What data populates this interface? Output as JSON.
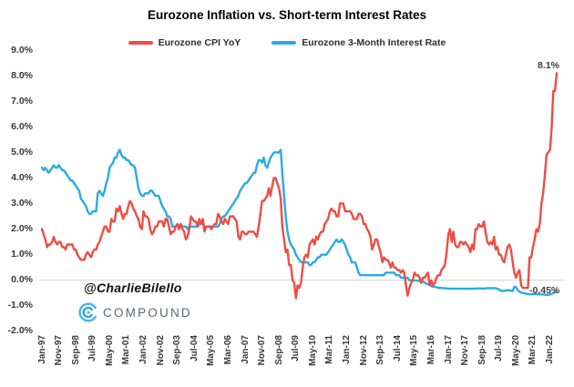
{
  "page": {
    "background": "#ffffff"
  },
  "chart_data": {
    "type": "line",
    "title": "Eurozone Inflation vs. Short-term Interest Rates",
    "x_range": {
      "start": "Jan-1997",
      "end": "May-2022",
      "frequency": "monthly",
      "points": 305
    },
    "ylim": [
      -2.0,
      9.0
    ],
    "grid": "horizontal line at 0.0% only",
    "legend_position": "top-center",
    "y_ticks": [
      9,
      8,
      7,
      6,
      5,
      4,
      3,
      2,
      1,
      0,
      -1,
      -2
    ],
    "y_tick_labels": [
      "9.0%",
      "8.0%",
      "7.0%",
      "6.0%",
      "5.0%",
      "4.0%",
      "3.0%",
      "2.0%",
      "1.0%",
      "0.0%",
      "-1.0%",
      "-2.0%"
    ],
    "x_tick_every": 10,
    "x_tick_labels": [
      "Jan-97",
      "Nov-97",
      "Sep-98",
      "Jul-99",
      "May-00",
      "Mar-01",
      "Jan-02",
      "Nov-02",
      "Sep-03",
      "Jul-04",
      "May-05",
      "Mar-06",
      "Jan-07",
      "Nov-07",
      "Sep-08",
      "Jul-09",
      "May-10",
      "Mar-11",
      "Jan-12",
      "Nov-12",
      "Sep-13",
      "Jul-14",
      "May-15",
      "Mar-16",
      "Jan-17",
      "Nov-17",
      "Sep-18",
      "Jul-19",
      "May-20",
      "Mar-21",
      "Jan-22"
    ],
    "gridline_color": "#d2d2d2",
    "series": [
      {
        "name": "Eurozone CPI YoY",
        "color": "#ef4c45",
        "values": [
          2.0,
          1.8,
          1.6,
          1.3,
          1.4,
          1.4,
          1.5,
          1.7,
          1.5,
          1.4,
          1.5,
          1.5,
          1.3,
          1.3,
          1.2,
          1.4,
          1.4,
          1.4,
          1.4,
          1.2,
          1.2,
          1.0,
          0.9,
          0.8,
          0.8,
          0.8,
          1.0,
          1.1,
          1.0,
          0.9,
          1.1,
          1.2,
          1.2,
          1.4,
          1.5,
          1.7,
          1.9,
          2.1,
          2.1,
          1.9,
          1.9,
          2.4,
          2.3,
          2.3,
          2.8,
          2.7,
          2.9,
          2.6,
          2.4,
          2.6,
          2.6,
          2.9,
          3.1,
          3.0,
          2.8,
          2.7,
          2.5,
          2.4,
          2.1,
          2.0,
          2.7,
          2.5,
          2.5,
          2.4,
          2.0,
          1.8,
          1.9,
          2.1,
          2.1,
          2.3,
          2.3,
          2.3,
          2.1,
          2.4,
          2.4,
          2.1,
          1.8,
          1.9,
          1.9,
          2.1,
          2.2,
          2.0,
          2.2,
          2.0,
          1.9,
          1.6,
          1.7,
          2.0,
          2.5,
          2.4,
          2.3,
          2.3,
          2.1,
          2.4,
          2.2,
          2.4,
          1.9,
          2.1,
          2.1,
          2.1,
          2.0,
          2.1,
          2.2,
          2.2,
          2.6,
          2.5,
          2.3,
          2.2,
          2.4,
          2.3,
          2.2,
          2.5,
          2.5,
          2.5,
          2.4,
          2.3,
          1.7,
          1.6,
          1.9,
          1.9,
          1.8,
          1.8,
          1.9,
          1.9,
          1.9,
          1.9,
          1.8,
          1.7,
          2.1,
          2.6,
          3.1,
          3.1,
          3.2,
          3.3,
          3.6,
          3.3,
          3.7,
          4.0,
          4.0,
          3.8,
          3.6,
          3.2,
          2.1,
          1.6,
          1.1,
          1.2,
          0.6,
          0.6,
          0.0,
          -0.1,
          -0.7,
          -0.2,
          -0.3,
          -0.1,
          0.5,
          0.9,
          1.0,
          0.9,
          1.4,
          1.5,
          1.6,
          1.4,
          1.7,
          1.6,
          1.8,
          1.9,
          1.9,
          2.2,
          2.3,
          2.4,
          2.7,
          2.8,
          2.7,
          2.7,
          2.5,
          2.5,
          3.0,
          3.0,
          3.0,
          2.7,
          2.7,
          2.7,
          2.7,
          2.6,
          2.4,
          2.4,
          2.4,
          2.6,
          2.6,
          2.5,
          2.2,
          2.2,
          2.0,
          1.9,
          1.7,
          1.2,
          1.4,
          1.6,
          1.6,
          1.3,
          1.1,
          0.7,
          0.9,
          0.8,
          0.8,
          0.7,
          0.5,
          0.7,
          0.5,
          0.5,
          0.4,
          0.4,
          0.3,
          0.4,
          0.3,
          -0.2,
          -0.6,
          -0.3,
          -0.1,
          0.0,
          0.3,
          0.2,
          0.2,
          0.1,
          -0.1,
          0.1,
          0.1,
          0.2,
          0.3,
          -0.2,
          0.0,
          -0.2,
          -0.1,
          0.1,
          0.2,
          0.2,
          0.4,
          0.5,
          0.6,
          1.1,
          1.8,
          2.0,
          1.5,
          1.9,
          1.4,
          1.3,
          1.3,
          1.5,
          1.5,
          1.4,
          1.5,
          1.4,
          1.3,
          1.1,
          1.4,
          1.2,
          2.0,
          2.0,
          2.2,
          2.1,
          2.1,
          2.3,
          1.9,
          1.5,
          1.4,
          1.5,
          1.4,
          1.7,
          1.2,
          1.3,
          1.0,
          1.0,
          0.8,
          0.7,
          1.0,
          1.3,
          1.4,
          1.2,
          0.7,
          0.3,
          0.1,
          0.3,
          0.4,
          -0.2,
          -0.3,
          -0.3,
          -0.3,
          -0.3,
          0.9,
          0.9,
          1.3,
          1.6,
          2.0,
          1.9,
          2.2,
          3.0,
          3.4,
          4.1,
          4.9,
          5.0,
          5.1,
          5.9,
          7.4,
          7.4,
          8.1
        ]
      },
      {
        "name": "Eurozone 3-Month Interest Rate",
        "color": "#29abe2",
        "values": [
          4.4,
          4.3,
          4.4,
          4.3,
          4.2,
          4.3,
          4.4,
          4.5,
          4.4,
          4.4,
          4.5,
          4.4,
          4.3,
          4.3,
          4.2,
          4.1,
          4.0,
          3.9,
          3.9,
          3.8,
          3.7,
          3.6,
          3.5,
          3.2,
          3.1,
          3.0,
          2.9,
          2.7,
          2.6,
          2.6,
          2.7,
          2.7,
          2.7,
          3.4,
          3.5,
          3.4,
          3.3,
          3.5,
          3.8,
          4.0,
          4.4,
          4.5,
          4.6,
          4.8,
          4.8,
          5.0,
          5.1,
          4.9,
          4.8,
          4.8,
          4.7,
          4.7,
          4.6,
          4.5,
          4.5,
          4.4,
          4.0,
          3.6,
          3.4,
          3.3,
          3.3,
          3.4,
          3.4,
          3.4,
          3.5,
          3.5,
          3.4,
          3.3,
          3.3,
          3.3,
          3.1,
          2.9,
          2.8,
          2.7,
          2.5,
          2.5,
          2.4,
          2.1,
          2.1,
          2.1,
          2.2,
          2.1,
          2.2,
          2.1,
          2.1,
          2.1,
          2.0,
          2.1,
          2.1,
          2.1,
          2.1,
          2.1,
          2.1,
          2.2,
          2.2,
          2.2,
          2.1,
          2.1,
          2.1,
          2.1,
          2.1,
          2.1,
          2.1,
          2.1,
          2.1,
          2.2,
          2.4,
          2.5,
          2.5,
          2.6,
          2.7,
          2.8,
          2.9,
          3.0,
          3.1,
          3.2,
          3.3,
          3.5,
          3.6,
          3.7,
          3.8,
          3.8,
          3.9,
          4.0,
          4.1,
          4.2,
          4.2,
          4.5,
          4.7,
          4.7,
          4.6,
          4.8,
          4.5,
          4.4,
          4.6,
          4.8,
          4.9,
          5.0,
          5.0,
          5.0,
          5.0,
          5.1,
          4.2,
          3.3,
          2.5,
          1.9,
          1.6,
          1.4,
          1.3,
          1.2,
          1.0,
          0.9,
          0.8,
          0.7,
          0.7,
          0.7,
          0.7,
          0.7,
          0.6,
          0.6,
          0.7,
          0.7,
          0.8,
          0.9,
          0.9,
          1.0,
          1.0,
          1.0,
          1.0,
          1.1,
          1.2,
          1.3,
          1.4,
          1.5,
          1.6,
          1.5,
          1.5,
          1.6,
          1.5,
          1.4,
          1.2,
          1.0,
          0.9,
          0.7,
          0.7,
          0.7,
          0.5,
          0.3,
          0.2,
          0.2,
          0.2,
          0.2,
          0.2,
          0.2,
          0.2,
          0.2,
          0.2,
          0.2,
          0.2,
          0.2,
          0.2,
          0.2,
          0.2,
          0.3,
          0.3,
          0.3,
          0.3,
          0.3,
          0.3,
          0.2,
          0.2,
          0.2,
          0.1,
          0.1,
          0.1,
          0.1,
          0.1,
          0.0,
          0.0,
          0.0,
          -0.01,
          -0.01,
          -0.02,
          -0.03,
          -0.04,
          -0.05,
          -0.09,
          -0.13,
          -0.15,
          -0.18,
          -0.23,
          -0.25,
          -0.26,
          -0.27,
          -0.29,
          -0.3,
          -0.3,
          -0.31,
          -0.31,
          -0.32,
          -0.33,
          -0.33,
          -0.33,
          -0.33,
          -0.33,
          -0.33,
          -0.33,
          -0.33,
          -0.33,
          -0.33,
          -0.33,
          -0.33,
          -0.33,
          -0.33,
          -0.33,
          -0.33,
          -0.32,
          -0.32,
          -0.32,
          -0.32,
          -0.32,
          -0.32,
          -0.32,
          -0.31,
          -0.31,
          -0.31,
          -0.31,
          -0.31,
          -0.31,
          -0.33,
          -0.36,
          -0.41,
          -0.42,
          -0.41,
          -0.4,
          -0.39,
          -0.39,
          -0.41,
          -0.42,
          -0.25,
          -0.27,
          -0.38,
          -0.44,
          -0.48,
          -0.49,
          -0.51,
          -0.52,
          -0.54,
          -0.55,
          -0.54,
          -0.54,
          -0.54,
          -0.54,
          -0.54,
          -0.55,
          -0.55,
          -0.55,
          -0.56,
          -0.57,
          -0.57,
          -0.55,
          -0.53,
          -0.5,
          -0.46,
          -0.45
        ]
      }
    ],
    "annotations": {
      "cpi_end": "8.1%",
      "rate_end": "-0.45%"
    }
  },
  "branding": {
    "handle": "@CharlieBilello",
    "logo_text": "COMPOUND",
    "logo_text_color": "#5c6a73",
    "icon_blue_outer": "#47b7e9",
    "icon_blue_inner": "#2ba3dd"
  }
}
